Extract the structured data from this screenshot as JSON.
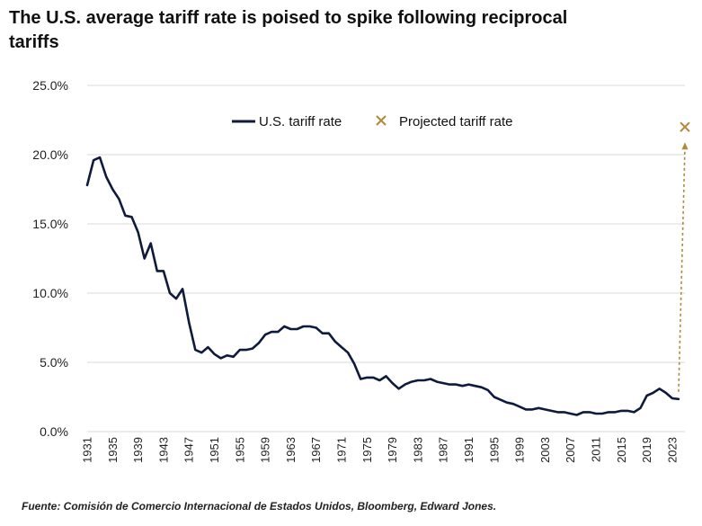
{
  "title": "The U.S. average tariff rate is poised to spike following reciprocal tariffs",
  "source": "Fuente: Comisión de Comercio Internacional de Estados Unidos, Bloomberg, Edward Jones.",
  "colors": {
    "series": "#0f1a3c",
    "projection": "#b08a3c",
    "grid": "#d9d9d9"
  },
  "chart_data": {
    "type": "line",
    "title": "The U.S. average tariff rate is poised to spike following reciprocal tariffs",
    "xlabel": "",
    "ylabel": "",
    "xlim": [
      1931,
      2025
    ],
    "ylim": [
      0,
      25
    ],
    "y_ticks": [
      {
        "value": 0,
        "label": "0.0%"
      },
      {
        "value": 5,
        "label": "5.0%"
      },
      {
        "value": 10,
        "label": "10.0%"
      },
      {
        "value": 15,
        "label": "15.0%"
      },
      {
        "value": 20,
        "label": "20.0%"
      },
      {
        "value": 25,
        "label": "25.0%"
      }
    ],
    "x_ticks": [
      "1931",
      "1935",
      "1939",
      "1943",
      "1947",
      "1951",
      "1955",
      "1959",
      "1963",
      "1967",
      "1971",
      "1975",
      "1979",
      "1983",
      "1987",
      "1991",
      "1995",
      "1999",
      "2003",
      "2007",
      "2011",
      "2015",
      "2019",
      "2023"
    ],
    "legend": {
      "position": "top",
      "items": [
        "U.S. tariff rate",
        "Projected tariff rate"
      ]
    },
    "series": [
      {
        "name": "U.S. tariff rate",
        "x": [
          1931,
          1932,
          1933,
          1934,
          1935,
          1936,
          1937,
          1938,
          1939,
          1940,
          1941,
          1942,
          1943,
          1944,
          1945,
          1946,
          1947,
          1948,
          1949,
          1950,
          1951,
          1952,
          1953,
          1954,
          1955,
          1956,
          1957,
          1958,
          1959,
          1960,
          1961,
          1962,
          1963,
          1964,
          1965,
          1966,
          1967,
          1968,
          1969,
          1970,
          1971,
          1972,
          1973,
          1974,
          1975,
          1976,
          1977,
          1978,
          1979,
          1980,
          1981,
          1982,
          1983,
          1984,
          1985,
          1986,
          1987,
          1988,
          1989,
          1990,
          1991,
          1992,
          1993,
          1994,
          1995,
          1996,
          1997,
          1998,
          1999,
          2000,
          2001,
          2002,
          2003,
          2004,
          2005,
          2006,
          2007,
          2008,
          2009,
          2010,
          2011,
          2012,
          2013,
          2014,
          2015,
          2016,
          2017,
          2018,
          2019,
          2020,
          2021,
          2022,
          2023,
          2024
        ],
        "y": [
          17.8,
          19.6,
          19.8,
          18.4,
          17.5,
          16.8,
          15.6,
          15.5,
          14.4,
          12.5,
          13.6,
          11.6,
          11.6,
          10.0,
          9.6,
          10.3,
          7.9,
          5.9,
          5.7,
          6.1,
          5.6,
          5.3,
          5.5,
          5.4,
          5.9,
          5.9,
          6.0,
          6.4,
          7.0,
          7.2,
          7.2,
          7.6,
          7.4,
          7.4,
          7.6,
          7.6,
          7.5,
          7.1,
          7.1,
          6.5,
          6.1,
          5.7,
          4.9,
          3.8,
          3.9,
          3.9,
          3.7,
          4.0,
          3.5,
          3.1,
          3.4,
          3.6,
          3.7,
          3.7,
          3.8,
          3.6,
          3.5,
          3.4,
          3.4,
          3.3,
          3.4,
          3.3,
          3.2,
          3.0,
          2.5,
          2.3,
          2.1,
          2.0,
          1.8,
          1.6,
          1.6,
          1.7,
          1.6,
          1.5,
          1.4,
          1.4,
          1.3,
          1.2,
          1.4,
          1.4,
          1.3,
          1.3,
          1.4,
          1.4,
          1.5,
          1.5,
          1.4,
          1.7,
          2.6,
          2.8,
          3.1,
          2.8,
          2.4,
          2.35
        ]
      },
      {
        "name": "Projected tariff rate",
        "x": [
          2025
        ],
        "y": [
          22.0
        ]
      }
    ]
  }
}
